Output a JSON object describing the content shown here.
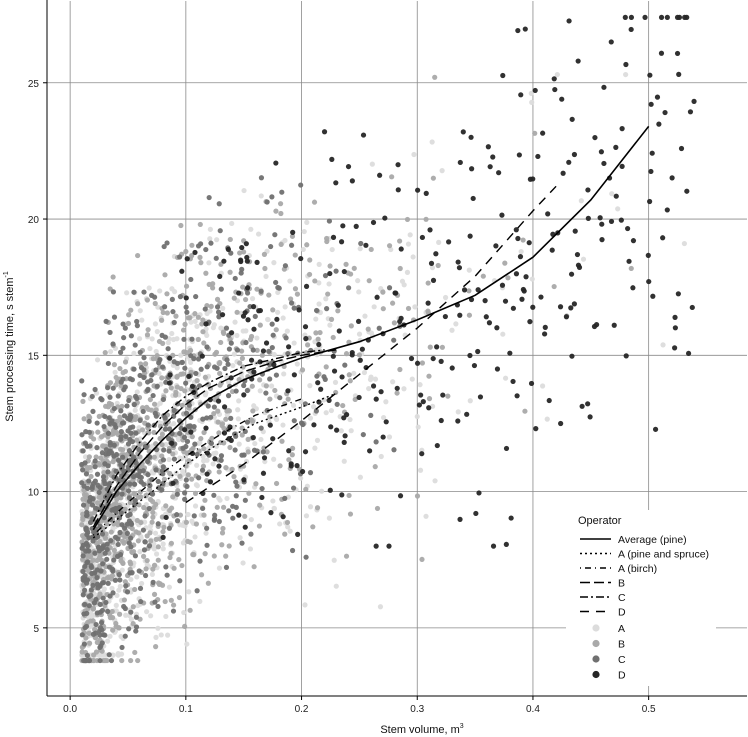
{
  "chart_data": {
    "type": "scatter",
    "xlabel": "Stem volume, m",
    "xlabel_sup": "3",
    "ylabel": "Stem processing time, s stem",
    "ylabel_sup": "-1",
    "xlim": [
      -0.02,
      0.585
    ],
    "ylim": [
      2.5,
      28
    ],
    "xticks": [
      0.0,
      0.1,
      0.2,
      0.3,
      0.4,
      0.5
    ],
    "xtick_labels": [
      "0.0",
      "0.1",
      "0.2",
      "0.3",
      "0.4",
      "0.5"
    ],
    "yticks": [
      5,
      10,
      15,
      20,
      25
    ],
    "ytick_labels": [
      "5",
      "10",
      "15",
      "20",
      "25"
    ],
    "grid": true,
    "legend": {
      "title": "Operator",
      "placement": "bottom-right",
      "line_entries": [
        {
          "name": "Average (pine)",
          "dash": "solid"
        },
        {
          "name": "A (pine and spruce)",
          "dash": "dotted"
        },
        {
          "name": "A (birch)",
          "dash": "dash-dot-sparse"
        },
        {
          "name": "B",
          "dash": "long-dash"
        },
        {
          "name": "C",
          "dash": "dash-dot"
        },
        {
          "name": "D",
          "dash": "dashed"
        }
      ],
      "point_entries": [
        {
          "name": "A",
          "color": "#dcdcdc"
        },
        {
          "name": "B",
          "color": "#a9a9a9"
        },
        {
          "name": "C",
          "color": "#707070"
        },
        {
          "name": "D",
          "color": "#262626"
        }
      ]
    },
    "curves": [
      {
        "name": "Average (pine)",
        "color": "#000000",
        "points": [
          [
            0.02,
            8.6
          ],
          [
            0.04,
            10.0
          ],
          [
            0.06,
            11.0
          ],
          [
            0.08,
            11.9
          ],
          [
            0.1,
            12.7
          ],
          [
            0.12,
            13.4
          ],
          [
            0.15,
            14.1
          ],
          [
            0.18,
            14.6
          ],
          [
            0.2,
            14.9
          ],
          [
            0.25,
            15.5
          ],
          [
            0.3,
            16.3
          ],
          [
            0.35,
            17.2
          ],
          [
            0.4,
            18.6
          ],
          [
            0.45,
            20.7
          ],
          [
            0.5,
            23.4
          ]
        ]
      },
      {
        "name": "A (pine and spruce)",
        "color": "#000000",
        "points": [
          [
            0.02,
            8.3
          ],
          [
            0.05,
            9.3
          ],
          [
            0.08,
            10.3
          ],
          [
            0.1,
            11.0
          ],
          [
            0.13,
            11.8
          ],
          [
            0.16,
            12.5
          ],
          [
            0.2,
            13.1
          ],
          [
            0.23,
            13.6
          ]
        ]
      },
      {
        "name": "A (birch)",
        "color": "#000000",
        "points": [
          [
            0.02,
            8.4
          ],
          [
            0.05,
            9.6
          ],
          [
            0.08,
            10.7
          ],
          [
            0.1,
            11.3
          ],
          [
            0.13,
            12.1
          ],
          [
            0.16,
            12.8
          ],
          [
            0.2,
            13.4
          ]
        ]
      },
      {
        "name": "B",
        "color": "#000000",
        "points": [
          [
            0.02,
            8.7
          ],
          [
            0.04,
            10.2
          ],
          [
            0.06,
            11.4
          ],
          [
            0.08,
            12.4
          ],
          [
            0.1,
            13.2
          ],
          [
            0.12,
            13.8
          ],
          [
            0.15,
            14.4
          ],
          [
            0.18,
            14.8
          ],
          [
            0.2,
            15.0
          ],
          [
            0.23,
            15.2
          ]
        ]
      },
      {
        "name": "C",
        "color": "#000000",
        "points": [
          [
            0.02,
            8.9
          ],
          [
            0.04,
            10.6
          ],
          [
            0.06,
            11.8
          ],
          [
            0.08,
            12.8
          ],
          [
            0.1,
            13.5
          ],
          [
            0.12,
            14.0
          ],
          [
            0.15,
            14.6
          ],
          [
            0.18,
            14.9
          ],
          [
            0.2,
            15.1
          ],
          [
            0.22,
            15.2
          ]
        ]
      },
      {
        "name": "D",
        "color": "#000000",
        "points": [
          [
            0.1,
            9.6
          ],
          [
            0.15,
            11.0
          ],
          [
            0.2,
            12.6
          ],
          [
            0.25,
            14.3
          ],
          [
            0.3,
            16.0
          ],
          [
            0.35,
            17.9
          ],
          [
            0.4,
            20.3
          ],
          [
            0.42,
            21.2
          ]
        ]
      }
    ],
    "series": [
      {
        "name": "A",
        "color": "#dcdcdc",
        "x_range": [
          0.01,
          0.56
        ],
        "y_range": [
          4.0,
          25.3
        ]
      },
      {
        "name": "B",
        "color": "#a9a9a9",
        "x_range": [
          0.01,
          0.49
        ],
        "y_range": [
          3.8,
          25.2
        ]
      },
      {
        "name": "C",
        "color": "#707070",
        "x_range": [
          0.01,
          0.29
        ],
        "y_range": [
          3.8,
          26.2
        ]
      },
      {
        "name": "D",
        "color": "#262626",
        "x_range": [
          0.08,
          0.54
        ],
        "y_range": [
          8.0,
          27.4
        ]
      }
    ]
  }
}
